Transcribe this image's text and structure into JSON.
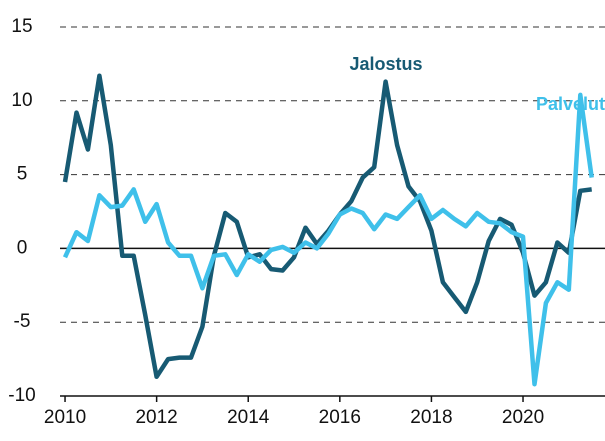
{
  "chart_data": {
    "type": "line",
    "x": [
      2010,
      2010.25,
      2010.5,
      2010.75,
      2011,
      2011.25,
      2011.5,
      2011.75,
      2012,
      2012.25,
      2012.5,
      2012.75,
      2013,
      2013.25,
      2013.5,
      2013.75,
      2014,
      2014.25,
      2014.5,
      2014.75,
      2015,
      2015.25,
      2015.5,
      2015.75,
      2016,
      2016.25,
      2016.5,
      2016.75,
      2017,
      2017.25,
      2017.5,
      2017.75,
      2018,
      2018.25,
      2018.5,
      2018.75,
      2019,
      2019.25,
      2019.5,
      2019.75,
      2020,
      2020.25,
      2020.5,
      2020.75,
      2021,
      2021.25,
      2021.5
    ],
    "series": [
      {
        "name": "Jalostus",
        "color": "#175a73",
        "values": [
          4.5,
          9.2,
          6.7,
          11.7,
          7.0,
          -0.5,
          -0.5,
          -4.5,
          -8.7,
          -7.5,
          -7.4,
          -7.4,
          -5.3,
          -0.5,
          2.4,
          1.8,
          -0.6,
          -0.4,
          -1.4,
          -1.5,
          -0.6,
          1.4,
          0.3,
          1.2,
          2.3,
          3.2,
          4.8,
          5.5,
          11.3,
          7.0,
          4.2,
          3.2,
          1.2,
          -2.3,
          -3.3,
          -4.3,
          -2.3,
          0.5,
          2.0,
          1.6,
          -0.3,
          -3.2,
          -2.3,
          0.4,
          -0.3,
          3.9,
          4.0
        ]
      },
      {
        "name": "Palvelut",
        "color": "#3fc0ea",
        "values": [
          -0.6,
          1.1,
          0.5,
          3.6,
          2.8,
          2.9,
          4.0,
          1.8,
          3.0,
          0.4,
          -0.5,
          -0.5,
          -2.7,
          -0.5,
          -0.4,
          -1.8,
          -0.4,
          -0.9,
          -0.1,
          0.1,
          -0.3,
          0.4,
          0.0,
          1.0,
          2.3,
          2.7,
          2.4,
          1.3,
          2.3,
          2.0,
          2.8,
          3.6,
          2.0,
          2.6,
          2.0,
          1.5,
          2.4,
          1.8,
          1.7,
          1.1,
          0.8,
          -9.2,
          -3.7,
          -2.3,
          -2.8,
          10.4,
          4.8
        ]
      }
    ],
    "xlim": [
      2009.89,
      2021.79
    ],
    "xticks": [
      2010,
      2012,
      2014,
      2016,
      2018,
      2020
    ],
    "ylim": [
      -10,
      15
    ],
    "yticks": [
      -10,
      -5,
      0,
      5,
      10,
      15
    ],
    "grid": true
  }
}
